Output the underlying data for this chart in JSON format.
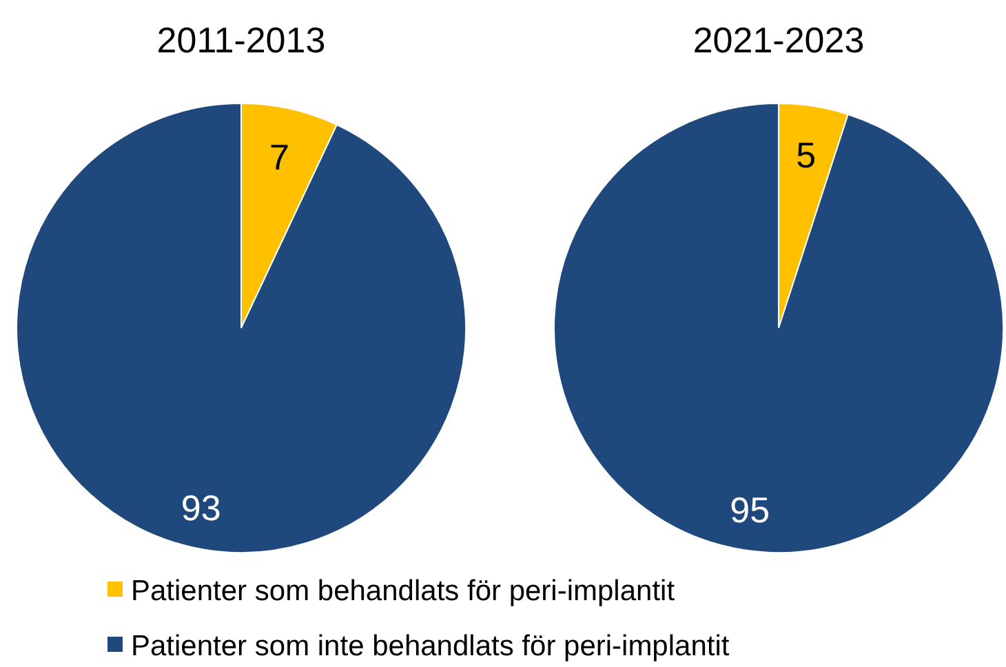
{
  "chart_data": [
    {
      "type": "pie",
      "title": "2011-2013",
      "categories": [
        "Patienter som behandlats för peri-implantit",
        "Patienter som inte behandlats för peri-implantit"
      ],
      "values": [
        7,
        93
      ],
      "colors": [
        "#ffc000",
        "#1f497d"
      ],
      "data_labels": true,
      "legend": "bottom"
    },
    {
      "type": "pie",
      "title": "2021-2023",
      "categories": [
        null,
        null
      ],
      "values": [
        5,
        95
      ],
      "colors": [
        "#ffc000",
        "#1f497d"
      ],
      "data_labels": true
    }
  ]
}
